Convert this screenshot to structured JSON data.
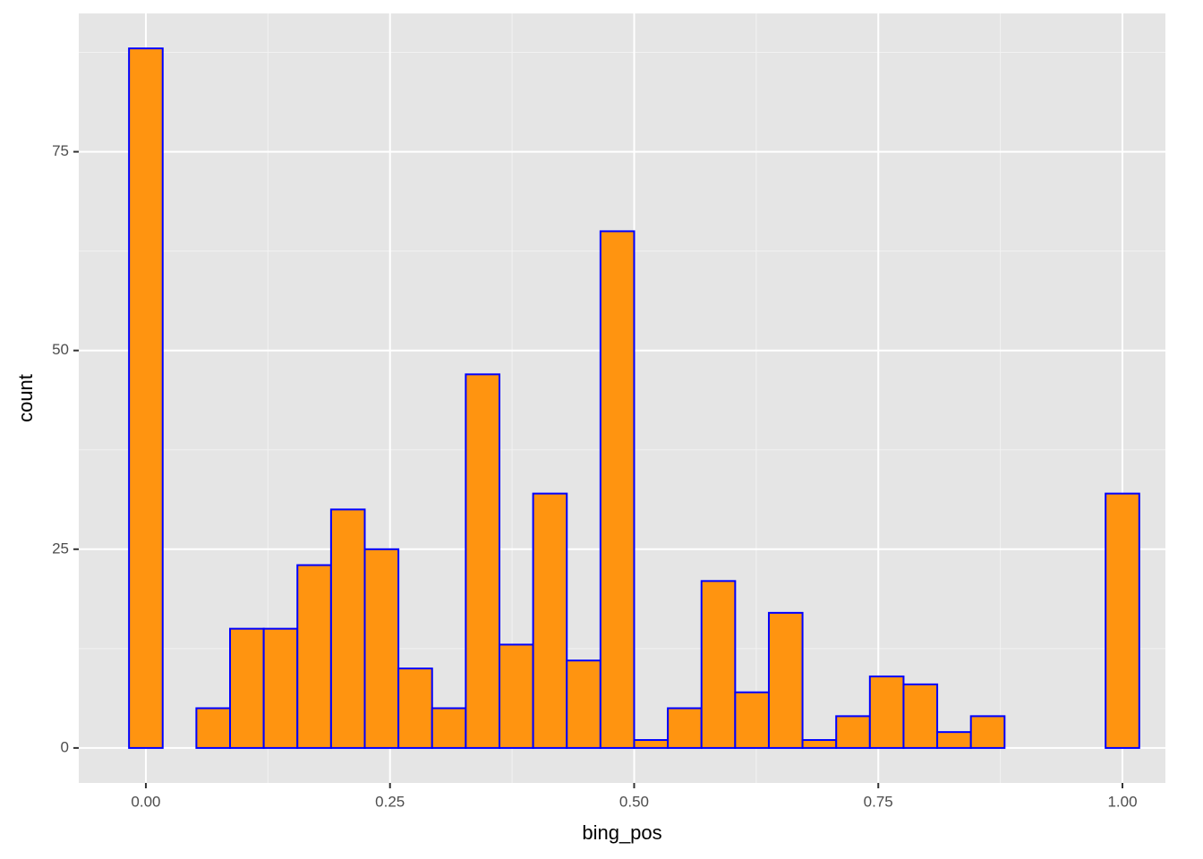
{
  "chart_data": {
    "type": "histogram",
    "x_label": "bing_pos",
    "y_label": "count",
    "bins": [
      -0.017241,
      0.017241,
      0.051724,
      0.086207,
      0.12069,
      0.155172,
      0.189655,
      0.224138,
      0.258621,
      0.293103,
      0.327586,
      0.362069,
      0.396552,
      0.431034,
      0.465517,
      0.5,
      0.534483,
      0.568966,
      0.603448,
      0.637931,
      0.672414,
      0.706897,
      0.741379,
      0.775862,
      0.810345,
      0.844828,
      0.87931,
      0.913793,
      0.948276,
      0.982759,
      1.017241
    ],
    "values": [
      88,
      0,
      5,
      15,
      15,
      23,
      30,
      25,
      10,
      5,
      47,
      13,
      32,
      11,
      65,
      1,
      5,
      21,
      7,
      17,
      1,
      4,
      9,
      8,
      2,
      4,
      0,
      0,
      0,
      32
    ],
    "color": "#ff9410",
    "edge_color": "#0000ff",
    "xlim": [
      -0.0687,
      1.044
    ],
    "ylim": [
      -4.4,
      92.4
    ],
    "xticks": [
      {
        "value": 0,
        "label": "0.00"
      },
      {
        "value": 0.25,
        "label": "0.25"
      },
      {
        "value": 0.5,
        "label": "0.50"
      },
      {
        "value": 0.75,
        "label": "0.75"
      },
      {
        "value": 1,
        "label": "1.00"
      }
    ],
    "yticks": [
      0,
      25,
      50,
      75
    ],
    "grid": true,
    "minor_grid": true
  }
}
